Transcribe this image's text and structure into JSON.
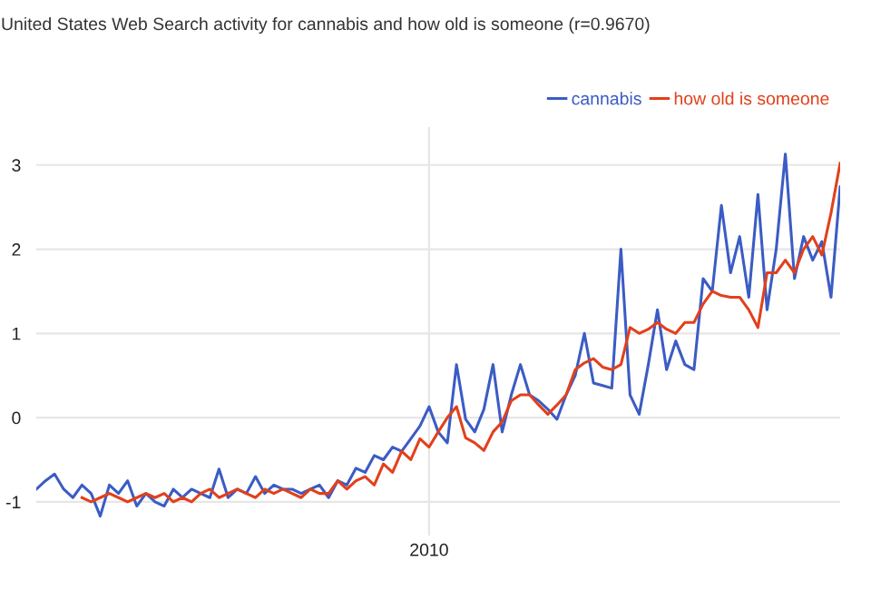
{
  "chart_data": {
    "type": "line",
    "title": "United States Web Search activity for cannabis and how old is someone (r=0.9670)",
    "categories": [
      null,
      null,
      null,
      null,
      null,
      null,
      null,
      null,
      null,
      null,
      null,
      null,
      null,
      null,
      null,
      null,
      null,
      null,
      null,
      null,
      null,
      null,
      null,
      null,
      null,
      null,
      null,
      null,
      null,
      null,
      null,
      null,
      null,
      null,
      null,
      null,
      null,
      null,
      null,
      null,
      null,
      null,
      null,
      "2010",
      null,
      null,
      null,
      null,
      null,
      null,
      null,
      null,
      null,
      null,
      null,
      null,
      null,
      null,
      null,
      null,
      null,
      null,
      null,
      null,
      null,
      null,
      null,
      null,
      null,
      null,
      null,
      null,
      null,
      null,
      null,
      null,
      null,
      null,
      null,
      null,
      null,
      null,
      null,
      null,
      null,
      null,
      null,
      null,
      null
    ],
    "series": [
      {
        "name": "cannabis",
        "color": "#3b5cc4",
        "values": [
          -0.85,
          -0.75,
          -0.67,
          -0.85,
          -0.95,
          -0.8,
          -0.9,
          -1.17,
          -0.8,
          -0.9,
          -0.75,
          -1.05,
          -0.9,
          -1.0,
          -1.05,
          -0.85,
          -0.95,
          -0.85,
          -0.9,
          -0.95,
          -0.61,
          -0.95,
          -0.85,
          -0.9,
          -0.7,
          -0.9,
          -0.8,
          -0.85,
          -0.85,
          -0.9,
          -0.85,
          -0.8,
          -0.95,
          -0.75,
          -0.8,
          -0.6,
          -0.65,
          -0.45,
          -0.5,
          -0.35,
          -0.4,
          -0.25,
          -0.1,
          0.13,
          -0.17,
          -0.3,
          0.63,
          -0.02,
          -0.17,
          0.1,
          0.63,
          -0.17,
          0.27,
          0.63,
          0.27,
          0.2,
          0.1,
          -0.02,
          0.27,
          0.5,
          1.0,
          0.41,
          0.38,
          0.35,
          2.0,
          0.27,
          0.04,
          0.63,
          1.28,
          0.57,
          0.91,
          0.63,
          0.57,
          1.65,
          1.5,
          2.52,
          1.72,
          2.15,
          1.43,
          2.65,
          1.28,
          2.0,
          3.13,
          1.65,
          2.15,
          1.87,
          2.09,
          1.43,
          2.74
        ]
      },
      {
        "name": "how old is someone",
        "color": "#e2401c",
        "values": [
          null,
          null,
          null,
          null,
          null,
          -0.95,
          -1.0,
          -0.95,
          -0.9,
          -0.95,
          -1.0,
          -0.95,
          -0.9,
          -0.95,
          -0.9,
          -1.0,
          -0.95,
          -1.0,
          -0.9,
          -0.85,
          -0.95,
          -0.9,
          -0.85,
          -0.9,
          -0.95,
          -0.85,
          -0.9,
          -0.85,
          -0.9,
          -0.95,
          -0.85,
          -0.9,
          -0.9,
          -0.75,
          -0.85,
          -0.75,
          -0.7,
          -0.8,
          -0.55,
          -0.65,
          -0.4,
          -0.5,
          -0.25,
          -0.35,
          -0.17,
          0.0,
          0.13,
          -0.24,
          -0.3,
          -0.39,
          -0.17,
          -0.05,
          0.2,
          0.27,
          0.27,
          0.15,
          0.04,
          0.15,
          0.27,
          0.57,
          0.65,
          0.7,
          0.6,
          0.57,
          0.63,
          1.07,
          1.0,
          1.05,
          1.13,
          1.05,
          1.0,
          1.13,
          1.13,
          1.35,
          1.5,
          1.45,
          1.43,
          1.43,
          1.28,
          1.07,
          1.72,
          1.72,
          1.87,
          1.72,
          2.0,
          2.15,
          1.93,
          2.43,
          3.02
        ]
      }
    ],
    "ylim": [
      -1.4,
      3.45
    ],
    "yticks": [
      -1,
      0,
      1,
      2,
      3
    ],
    "grid": true,
    "legend": "top right"
  }
}
